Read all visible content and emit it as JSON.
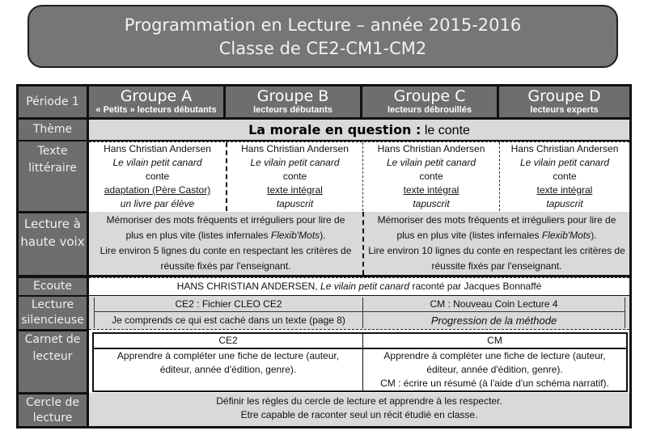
{
  "title": {
    "line1": "Programmation en Lecture – année 2015-2016",
    "line2": "Classe de CE2-CM1-CM2"
  },
  "header": {
    "periode": "Période 1",
    "groups": [
      {
        "name": "Groupe A",
        "sub": "« Petits » lecteurs débutants"
      },
      {
        "name": "Groupe B",
        "sub": "lecteurs débutants"
      },
      {
        "name": "Groupe C",
        "sub": "lecteurs débrouillés"
      },
      {
        "name": "Groupe D",
        "sub": "lecteurs experts"
      }
    ]
  },
  "rows": {
    "theme": {
      "label": "Thème",
      "bold": "La morale en question :",
      "rest": " le conte"
    },
    "texte": {
      "label1": "Texte",
      "label2": "littéraire",
      "cells": [
        {
          "author": "Hans Christian Andersen",
          "title": "Le vilain petit canard",
          "genre": "conte",
          "version": "adaptation (Père Castor)",
          "support": "un livre par élève"
        },
        {
          "author": "Hans Christian Andersen",
          "title": "Le vilain petit canard",
          "genre": "conte",
          "version": "texte intégral",
          "support": "tapuscrit"
        },
        {
          "author": "Hans Christian Andersen",
          "title": "Le vilain petit canard",
          "genre": "conte",
          "version": "texte intégral",
          "support": "tapuscrit"
        },
        {
          "author": "Hans Christian Andersen",
          "title": "Le vilain petit canard",
          "genre": "conte",
          "version": "texte intégral",
          "support": "tapuscrit"
        }
      ]
    },
    "haute_voix": {
      "label1": "Lecture à",
      "label2": "haute voix",
      "cells": [
        {
          "l1": "Mémoriser des mots fréquents et irréguliers pour lire de",
          "l2a": "plus en plus vite (listes infernales ",
          "l2i": "Flexib'Mots",
          "l2b": ").",
          "l3": "Lire environ 5 lignes du conte en respectant les critères de",
          "l4": "réussite fixés par l'enseignant."
        },
        {
          "l1": "Mémoriser des mots fréquents et irréguliers pour lire de",
          "l2a": "plus en plus vite (listes infernales ",
          "l2i": "Flexib'Mots",
          "l2b": ").",
          "l3": "Lire environ 10 lignes du conte en respectant les critères de",
          "l4": "réussite fixés par l'enseignant."
        }
      ]
    },
    "ecoute": {
      "label": "Ecoute",
      "a": "HANS CHRISTIAN ANDERSEN, ",
      "i": "Le vilain petit canard",
      "b": " raconté par Jacques Bonnaffé"
    },
    "silencieuse": {
      "label1": "Lecture",
      "label2": "silencieuse",
      "ce2_title": "CE2 : Fichier CLEO CE2",
      "ce2_text": "Je comprends ce qui est caché dans un texte (page 8)",
      "cm_title": "CM : Nouveau Coin Lecture 4",
      "cm_text": "Progression de la méthode"
    },
    "carnet": {
      "label1": "Carnet de",
      "label2": "lecteur",
      "ce2_title": "CE2",
      "ce2_l1": "Apprendre à compléter une fiche de lecture  (auteur,",
      "ce2_l2": "éditeur, année d'édition, genre).",
      "cm_title": "CM",
      "cm_l1": "Apprendre à compléter une fiche de lecture  (auteur,",
      "cm_l2": "éditeur, année d'édition, genre).",
      "cm_l3": "CM : écrire un résumé (à l'aide d'un schéma narratif)."
    },
    "cercle": {
      "label1": "Cercle de",
      "label2": "lecture",
      "l1": "Définir les règles du cercle de lecture et apprendre à les respecter.",
      "l2": "Etre capable de raconter seul un récit étudié en classe."
    }
  }
}
